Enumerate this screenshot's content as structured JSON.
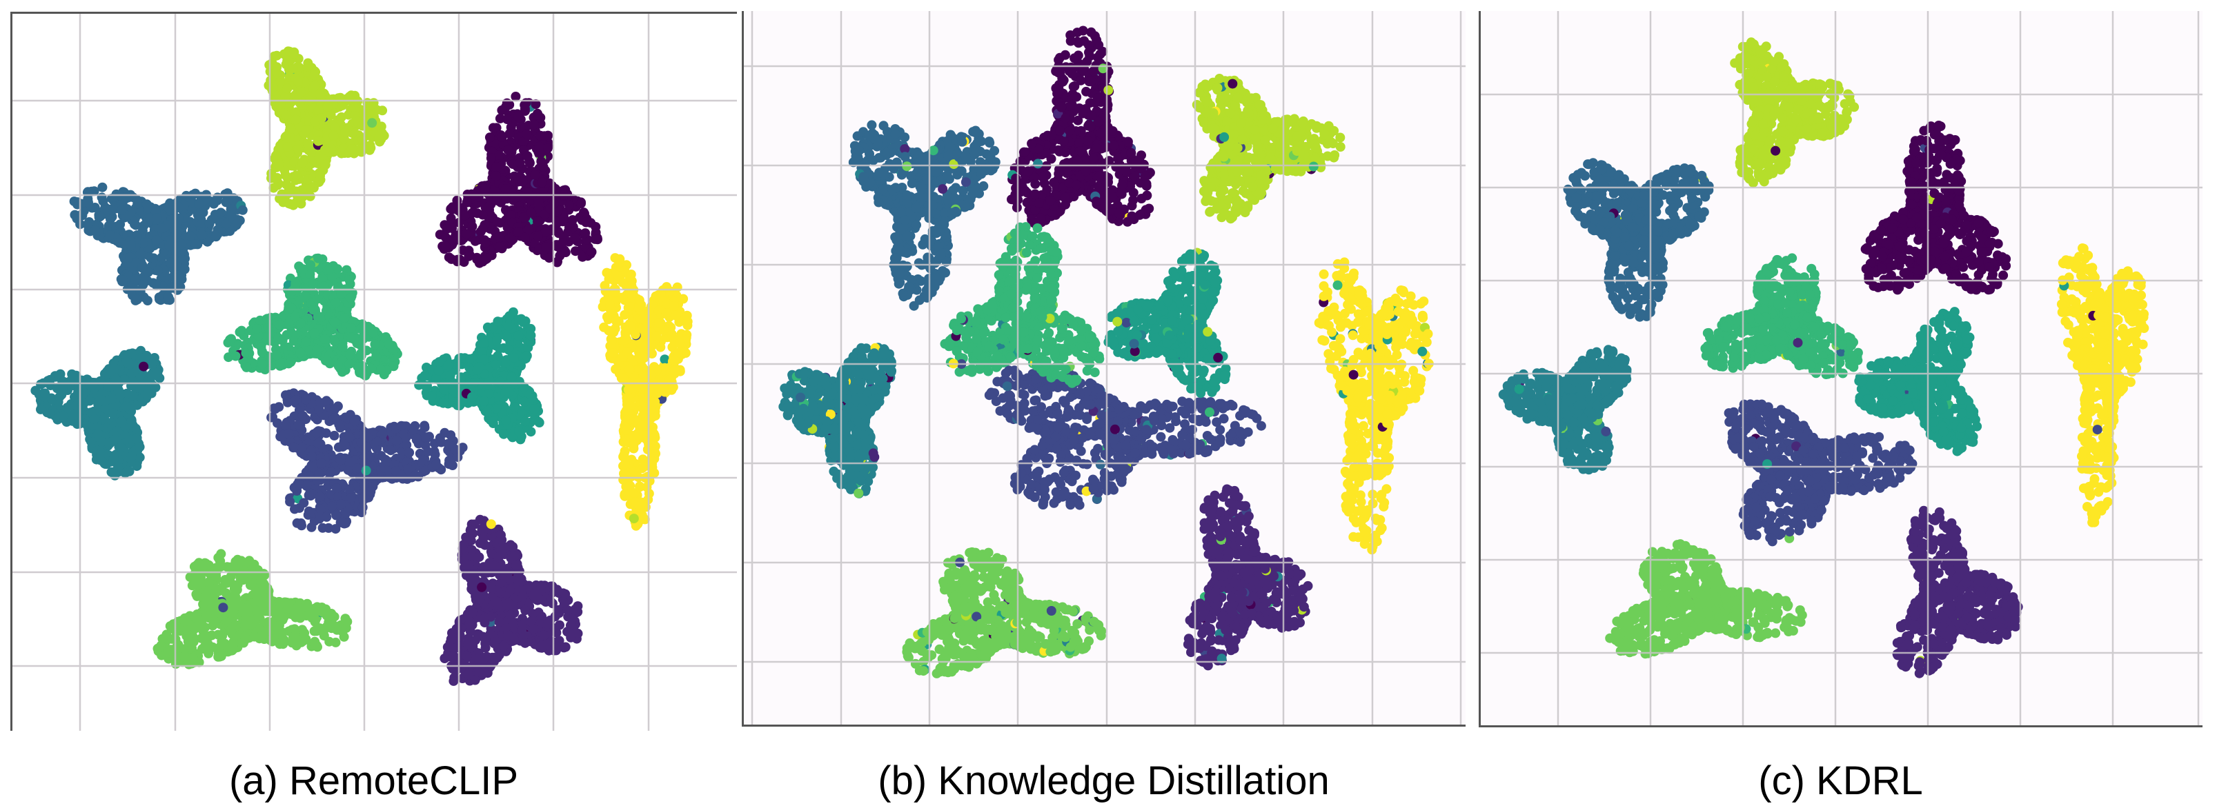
{
  "figure": {
    "panels": [
      {
        "id": "a",
        "caption": "(a) RemoteCLIP"
      },
      {
        "id": "b",
        "caption": "(b) Knowledge Distillation"
      },
      {
        "id": "c",
        "caption": "(c) KDRL"
      }
    ]
  },
  "chart_data": [
    {
      "type": "scatter",
      "title": "(a) RemoteCLIP",
      "xlabel": "",
      "ylabel": "",
      "grid": true,
      "colormap": "viridis",
      "legend": null,
      "description": "t-SNE embedding, 10 clusters colored by class",
      "clusters": [
        {
          "class": 0,
          "color": "#440154",
          "cx": 0.7,
          "cy": 0.26,
          "rx": 0.11,
          "ry": 0.13
        },
        {
          "class": 1,
          "color": "#482878",
          "cx": 0.68,
          "cy": 0.83,
          "rx": 0.1,
          "ry": 0.12
        },
        {
          "class": 2,
          "color": "#3e4989",
          "cx": 0.47,
          "cy": 0.62,
          "rx": 0.14,
          "ry": 0.1
        },
        {
          "class": 3,
          "color": "#31688e",
          "cx": 0.2,
          "cy": 0.31,
          "rx": 0.12,
          "ry": 0.09
        },
        {
          "class": 4,
          "color": "#26828e",
          "cx": 0.13,
          "cy": 0.55,
          "rx": 0.09,
          "ry": 0.09
        },
        {
          "class": 5,
          "color": "#1f9e89",
          "cx": 0.66,
          "cy": 0.51,
          "rx": 0.09,
          "ry": 0.09
        },
        {
          "class": 6,
          "color": "#35b779",
          "cx": 0.42,
          "cy": 0.44,
          "rx": 0.12,
          "ry": 0.09
        },
        {
          "class": 7,
          "color": "#6ece58",
          "cx": 0.32,
          "cy": 0.84,
          "rx": 0.14,
          "ry": 0.08
        },
        {
          "class": 8,
          "color": "#b5de2b",
          "cx": 0.42,
          "cy": 0.16,
          "rx": 0.09,
          "ry": 0.11
        },
        {
          "class": 9,
          "color": "#fde725",
          "cx": 0.87,
          "cy": 0.5,
          "rx": 0.06,
          "ry": 0.2
        }
      ]
    },
    {
      "type": "scatter",
      "title": "(b) Knowledge Distillation",
      "xlabel": "",
      "ylabel": "",
      "grid": true,
      "colormap": "viridis",
      "legend": null,
      "description": "t-SNE embedding, 10 clusters with more overlap/mixing",
      "clusters": [
        {
          "class": 0,
          "color": "#440154",
          "cx": 0.47,
          "cy": 0.19,
          "rx": 0.1,
          "ry": 0.15
        },
        {
          "class": 1,
          "color": "#482878",
          "cx": 0.69,
          "cy": 0.8,
          "rx": 0.09,
          "ry": 0.13
        },
        {
          "class": 2,
          "color": "#3e4989",
          "cx": 0.5,
          "cy": 0.59,
          "rx": 0.2,
          "ry": 0.1
        },
        {
          "class": 3,
          "color": "#31688e",
          "cx": 0.25,
          "cy": 0.26,
          "rx": 0.1,
          "ry": 0.14
        },
        {
          "class": 4,
          "color": "#26828e",
          "cx": 0.14,
          "cy": 0.56,
          "rx": 0.08,
          "ry": 0.11
        },
        {
          "class": 5,
          "color": "#1f9e89",
          "cx": 0.6,
          "cy": 0.44,
          "rx": 0.09,
          "ry": 0.1
        },
        {
          "class": 6,
          "color": "#35b779",
          "cx": 0.39,
          "cy": 0.43,
          "rx": 0.11,
          "ry": 0.12
        },
        {
          "class": 7,
          "color": "#6ece58",
          "cx": 0.35,
          "cy": 0.85,
          "rx": 0.14,
          "ry": 0.09
        },
        {
          "class": 8,
          "color": "#b5de2b",
          "cx": 0.71,
          "cy": 0.19,
          "rx": 0.11,
          "ry": 0.1
        },
        {
          "class": 9,
          "color": "#fde725",
          "cx": 0.87,
          "cy": 0.52,
          "rx": 0.08,
          "ry": 0.22
        }
      ]
    },
    {
      "type": "scatter",
      "title": "(c) KDRL",
      "xlabel": "",
      "ylabel": "",
      "grid": true,
      "colormap": "viridis",
      "legend": null,
      "description": "t-SNE embedding, 10 well-separated clusters",
      "clusters": [
        {
          "class": 0,
          "color": "#440154",
          "cx": 0.63,
          "cy": 0.3,
          "rx": 0.1,
          "ry": 0.13
        },
        {
          "class": 1,
          "color": "#482878",
          "cx": 0.65,
          "cy": 0.82,
          "rx": 0.09,
          "ry": 0.12
        },
        {
          "class": 2,
          "color": "#3e4989",
          "cx": 0.45,
          "cy": 0.64,
          "rx": 0.14,
          "ry": 0.1
        },
        {
          "class": 3,
          "color": "#31688e",
          "cx": 0.22,
          "cy": 0.3,
          "rx": 0.1,
          "ry": 0.12
        },
        {
          "class": 4,
          "color": "#26828e",
          "cx": 0.13,
          "cy": 0.55,
          "rx": 0.09,
          "ry": 0.09
        },
        {
          "class": 5,
          "color": "#1f9e89",
          "cx": 0.62,
          "cy": 0.52,
          "rx": 0.09,
          "ry": 0.1
        },
        {
          "class": 6,
          "color": "#35b779",
          "cx": 0.42,
          "cy": 0.44,
          "rx": 0.11,
          "ry": 0.09
        },
        {
          "class": 7,
          "color": "#6ece58",
          "cx": 0.3,
          "cy": 0.83,
          "rx": 0.14,
          "ry": 0.08
        },
        {
          "class": 8,
          "color": "#b5de2b",
          "cx": 0.42,
          "cy": 0.14,
          "rx": 0.09,
          "ry": 0.1
        },
        {
          "class": 9,
          "color": "#fde725",
          "cx": 0.86,
          "cy": 0.49,
          "rx": 0.06,
          "ry": 0.21
        }
      ]
    }
  ]
}
